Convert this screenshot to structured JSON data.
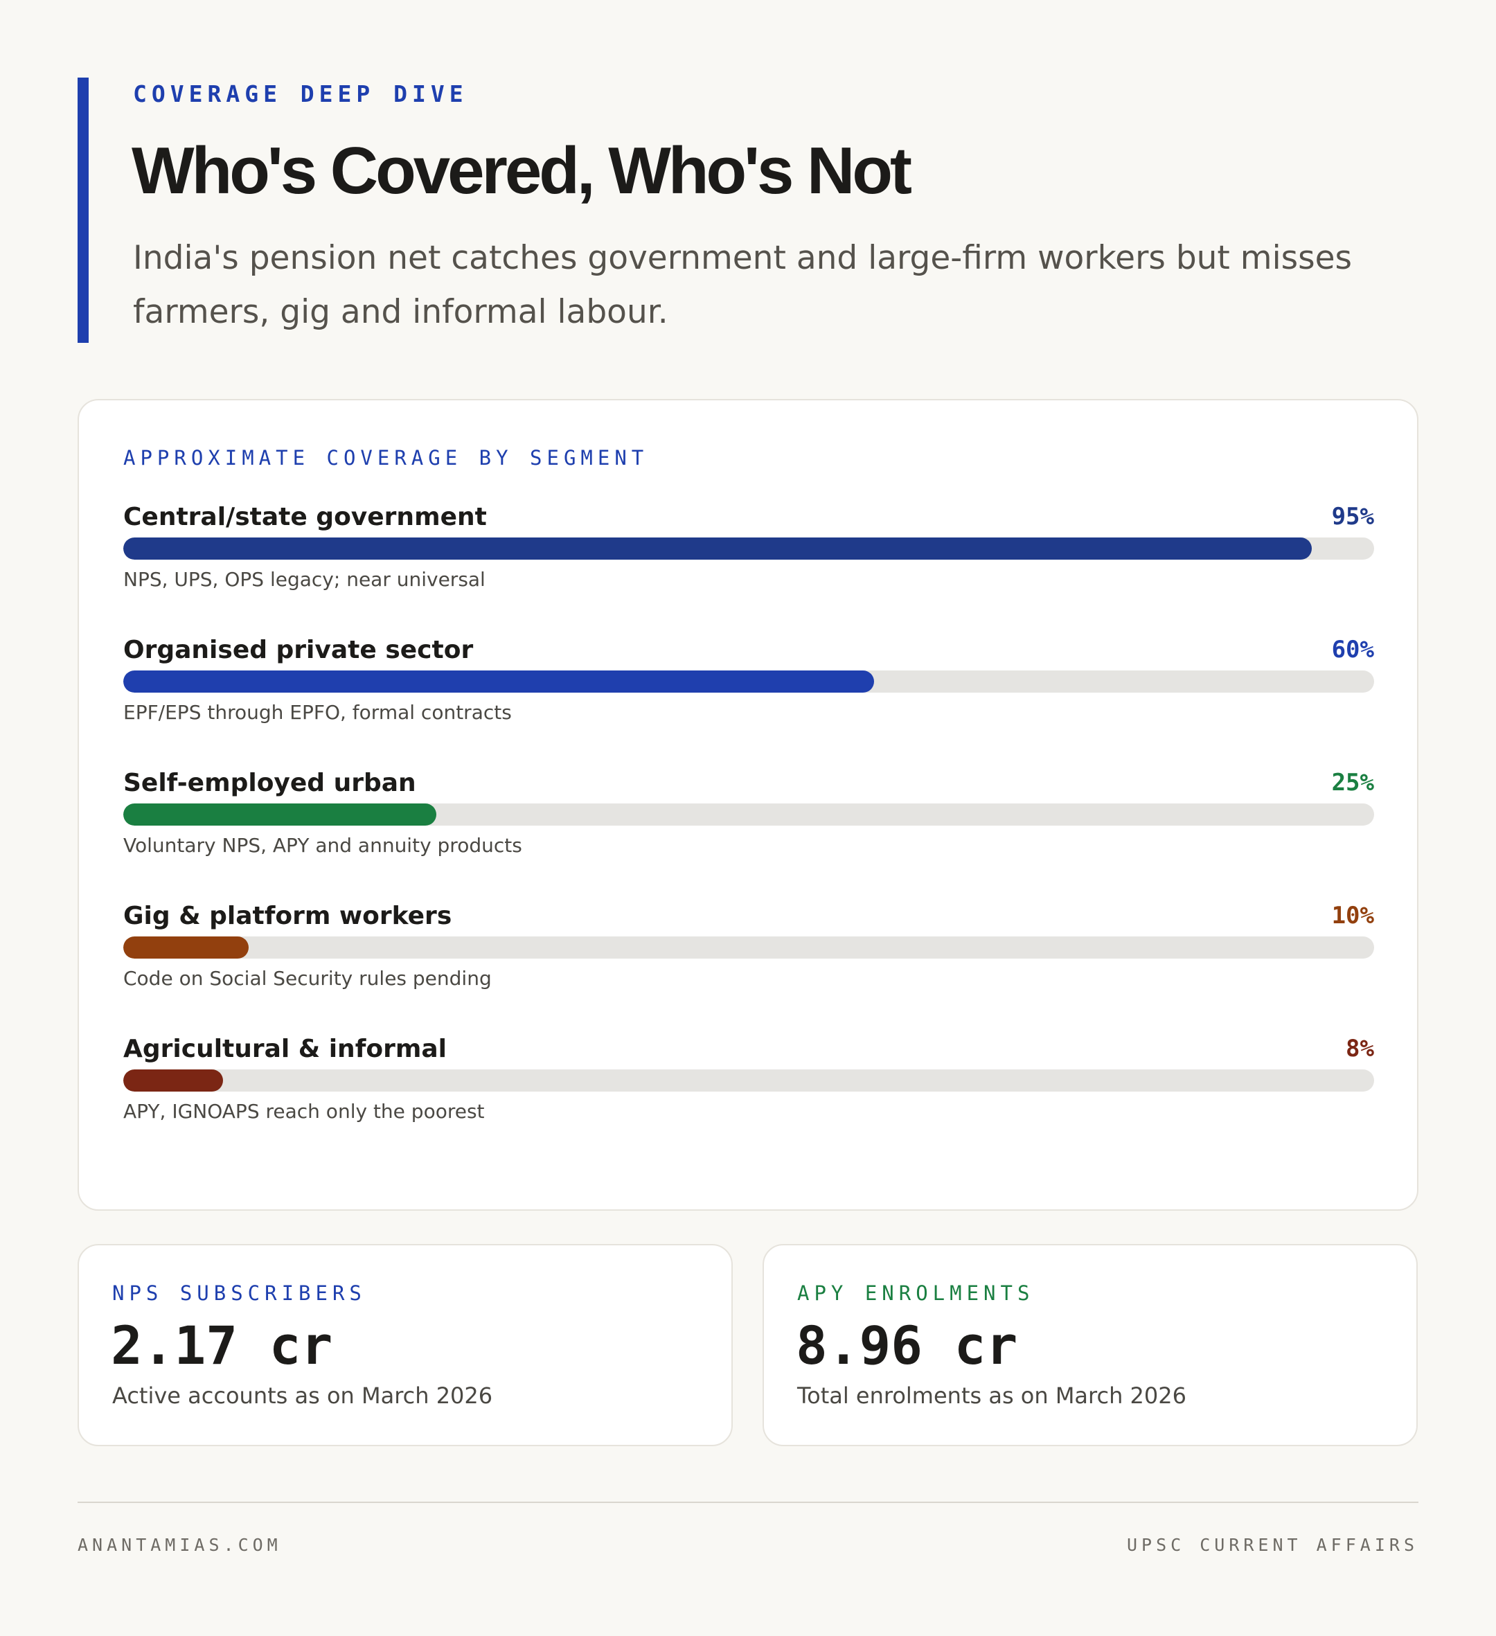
{
  "header": {
    "kicker": "COVERAGE DEEP DIVE",
    "title": "Who's Covered, Who's Not",
    "subtitle": "India's pension net catches government and large-firm workers but misses farmers, gig and informal labour."
  },
  "chart_data": {
    "type": "bar",
    "orientation": "horizontal",
    "title": "APPROXIMATE COVERAGE BY SEGMENT",
    "unit": "%",
    "xlim": [
      0,
      100
    ],
    "categories": [
      "Central/state government",
      "Organised private sector",
      "Self-employed urban",
      "Gig & platform workers",
      "Agricultural & informal"
    ],
    "values": [
      95,
      60,
      25,
      10,
      8
    ],
    "value_labels": [
      "95%",
      "60%",
      "25%",
      "10%",
      "8%"
    ],
    "notes": [
      "NPS, UPS, OPS legacy; near universal",
      "EPF/EPS through EPFO, formal contracts",
      "Voluntary NPS, APY and annuity products",
      "Code on Social Security rules pending",
      "APY, IGNOAPS reach only the poorest"
    ],
    "colors": [
      "#1f3a8a",
      "#1f3fae",
      "#1a7f41",
      "#92400e",
      "#7b2614"
    ],
    "grid": false,
    "legend": "none"
  },
  "stats": {
    "nps": {
      "label": "NPS SUBSCRIBERS",
      "value": "2.17 cr",
      "note": "Active accounts as on March 2026",
      "color": "#1e3fae"
    },
    "apy": {
      "label": "APY ENROLMENTS",
      "value": "8.96 cr",
      "note": "Total enrolments as on March 2026",
      "color": "#1a7f41"
    }
  },
  "footer": {
    "left": "ANANTAMIAS.COM",
    "right": "UPSC CURRENT AFFAIRS"
  }
}
